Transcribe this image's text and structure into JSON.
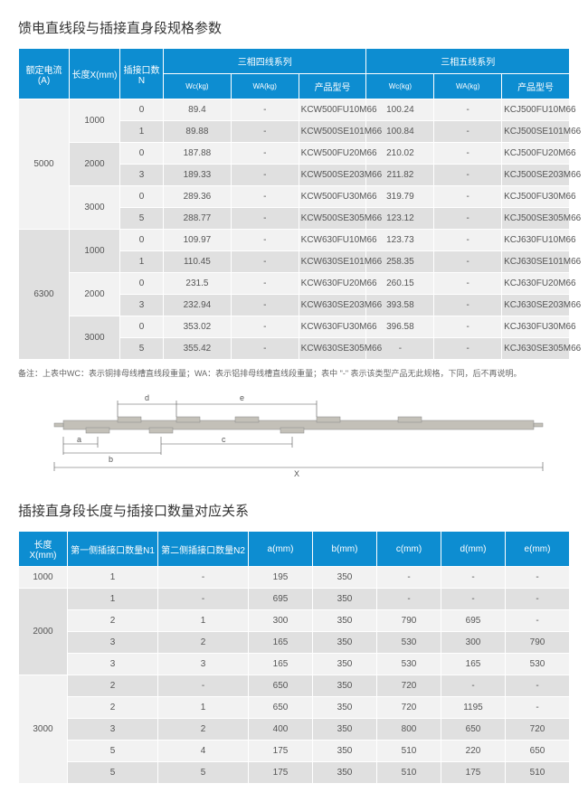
{
  "section1": {
    "title": "馈电直线段与插接直身段规格参数",
    "note": "备注：上表中WC：表示铜排母线槽直线段重量；WA：表示铝排母线槽直线段重量；表中 \"-\" 表示该类型产品无此规格，下同，后不再说明。",
    "headers": {
      "h1": "额定电流(A)",
      "h2": "长度X(mm)",
      "h3": "插接口数N",
      "g1": "三相四线系列",
      "g2": "三相五线系列",
      "wc": "Wc(kg)",
      "wa": "WA(kg)",
      "model": "产品型号"
    },
    "currents": [
      "5000",
      "6300"
    ],
    "lengths": [
      "1000",
      "2000",
      "3000"
    ],
    "rows": [
      {
        "n": "0",
        "wc1": "89.4",
        "wa1": "-",
        "m1": "KCW500FU10M66",
        "wc2": "100.24",
        "wa2": "-",
        "m2": "KCJ500FU10M66"
      },
      {
        "n": "1",
        "wc1": "89.88",
        "wa1": "-",
        "m1": "KCW500SE101M66",
        "wc2": "100.84",
        "wa2": "-",
        "m2": "KCJ500SE101M66"
      },
      {
        "n": "0",
        "wc1": "187.88",
        "wa1": "-",
        "m1": "KCW500FU20M66",
        "wc2": "210.02",
        "wa2": "-",
        "m2": "KCJ500FU20M66"
      },
      {
        "n": "3",
        "wc1": "189.33",
        "wa1": "-",
        "m1": "KCW500SE203M66",
        "wc2": "211.82",
        "wa2": "-",
        "m2": "KCJ500SE203M66"
      },
      {
        "n": "0",
        "wc1": "289.36",
        "wa1": "-",
        "m1": "KCW500FU30M66",
        "wc2": "319.79",
        "wa2": "-",
        "m2": "KCJ500FU30M66"
      },
      {
        "n": "5",
        "wc1": "288.77",
        "wa1": "-",
        "m1": "KCW500SE305M66",
        "wc2": "123.12",
        "wa2": "-",
        "m2": "KCJ500SE305M66"
      },
      {
        "n": "0",
        "wc1": "109.97",
        "wa1": "-",
        "m1": "KCW630FU10M66",
        "wc2": "123.73",
        "wa2": "-",
        "m2": "KCJ630FU10M66"
      },
      {
        "n": "1",
        "wc1": "110.45",
        "wa1": "-",
        "m1": "KCW630SE101M66",
        "wc2": "258.35",
        "wa2": "-",
        "m2": "KCJ630SE101M66"
      },
      {
        "n": "0",
        "wc1": "231.5",
        "wa1": "-",
        "m1": "KCW630FU20M66",
        "wc2": "260.15",
        "wa2": "-",
        "m2": "KCJ630FU20M66"
      },
      {
        "n": "3",
        "wc1": "232.94",
        "wa1": "-",
        "m1": "KCW630SE203M66",
        "wc2": "393.58",
        "wa2": "-",
        "m2": "KCJ630SE203M66"
      },
      {
        "n": "0",
        "wc1": "353.02",
        "wa1": "-",
        "m1": "KCW630FU30M66",
        "wc2": "396.58",
        "wa2": "-",
        "m2": "KCJ630FU30M66"
      },
      {
        "n": "5",
        "wc1": "355.42",
        "wa1": "-",
        "m1": "KCW630SE305M66",
        "wc2": "-",
        "wa2": "-",
        "m2": "KCJ630SE305M66"
      }
    ]
  },
  "section2": {
    "title": "插接直身段长度与插接口数量对应关系",
    "headers": {
      "h1": "长度X(mm)",
      "h2": "第一侧插接口数量N1",
      "h3": "第二侧插接口数量N2",
      "a": "a(mm)",
      "b": "b(mm)",
      "c": "c(mm)",
      "d": "d(mm)",
      "e": "e(mm)"
    },
    "groups": [
      {
        "len": "1000",
        "rows": [
          {
            "n1": "1",
            "n2": "-",
            "a": "195",
            "b": "350",
            "c": "-",
            "d": "-",
            "e": "-"
          }
        ]
      },
      {
        "len": "2000",
        "rows": [
          {
            "n1": "1",
            "n2": "-",
            "a": "695",
            "b": "350",
            "c": "-",
            "d": "-",
            "e": "-"
          },
          {
            "n1": "2",
            "n2": "1",
            "a": "300",
            "b": "350",
            "c": "790",
            "d": "695",
            "e": "-"
          },
          {
            "n1": "3",
            "n2": "2",
            "a": "165",
            "b": "350",
            "c": "530",
            "d": "300",
            "e": "790"
          },
          {
            "n1": "3",
            "n2": "3",
            "a": "165",
            "b": "350",
            "c": "530",
            "d": "165",
            "e": "530"
          }
        ]
      },
      {
        "len": "3000",
        "rows": [
          {
            "n1": "2",
            "n2": "-",
            "a": "650",
            "b": "350",
            "c": "720",
            "d": "-",
            "e": "-"
          },
          {
            "n1": "2",
            "n2": "1",
            "a": "650",
            "b": "350",
            "c": "720",
            "d": "1195",
            "e": "-"
          },
          {
            "n1": "3",
            "n2": "2",
            "a": "400",
            "b": "350",
            "c": "800",
            "d": "650",
            "e": "720"
          },
          {
            "n1": "5",
            "n2": "4",
            "a": "175",
            "b": "350",
            "c": "510",
            "d": "220",
            "e": "650"
          },
          {
            "n1": "5",
            "n2": "5",
            "a": "175",
            "b": "350",
            "c": "510",
            "d": "175",
            "e": "510"
          }
        ]
      }
    ]
  },
  "diagram": {
    "labels": {
      "a": "a",
      "b": "b",
      "c": "c",
      "d": "d",
      "e": "e",
      "x": "X"
    },
    "bar_color": "#c3c0b8",
    "line_color": "#555",
    "text_color": "#555"
  }
}
